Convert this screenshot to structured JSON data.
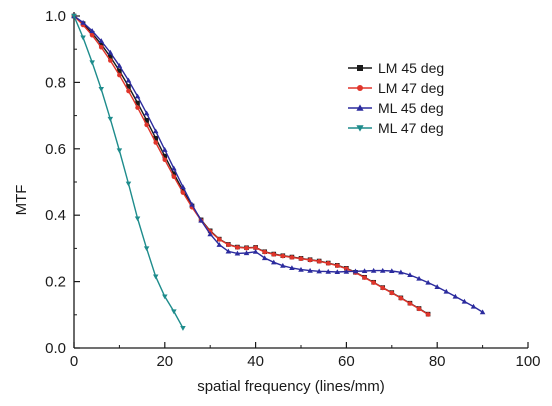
{
  "chart_data": {
    "type": "line",
    "xlabel": "spatial frequency (lines/mm)",
    "ylabel": "MTF",
    "xlim": [
      0,
      100
    ],
    "ylim": [
      0.0,
      1.0
    ],
    "x_ticks": [
      0,
      20,
      40,
      60,
      80,
      100
    ],
    "x_tick_labels": [
      "0",
      "20",
      "40",
      "60",
      "80",
      "100"
    ],
    "y_ticks": [
      0.0,
      0.2,
      0.4,
      0.6,
      0.8,
      1.0
    ],
    "y_tick_labels": [
      "0.0",
      "0.2",
      "0.4",
      "0.6",
      "0.8",
      "1.0"
    ],
    "grid": false,
    "legend_position": "top-right",
    "series": [
      {
        "name": "LM 45 deg",
        "color": "#1a1a1a",
        "marker": "square",
        "x": [
          0,
          2,
          4,
          6,
          8,
          10,
          12,
          14,
          16,
          18,
          20,
          22,
          24,
          26,
          28,
          30,
          32,
          34,
          36,
          38,
          40,
          42,
          44,
          46,
          48,
          50,
          52,
          54,
          56,
          58,
          60,
          62,
          64,
          66,
          68,
          70,
          72,
          74,
          76,
          78
        ],
        "y": [
          1.0,
          0.977,
          0.948,
          0.915,
          0.877,
          0.835,
          0.788,
          0.738,
          0.686,
          0.632,
          0.578,
          0.525,
          0.474,
          0.428,
          0.386,
          0.353,
          0.328,
          0.312,
          0.304,
          0.302,
          0.303,
          0.29,
          0.283,
          0.278,
          0.274,
          0.27,
          0.266,
          0.262,
          0.256,
          0.249,
          0.24,
          0.228,
          0.213,
          0.198,
          0.182,
          0.167,
          0.151,
          0.135,
          0.119,
          0.102
        ]
      },
      {
        "name": "LM 47 deg",
        "color": "#e0352b",
        "marker": "circle",
        "x": [
          0,
          2,
          4,
          6,
          8,
          10,
          12,
          14,
          16,
          18,
          20,
          22,
          24,
          26,
          28,
          30,
          32,
          34,
          36,
          38,
          40,
          42,
          44,
          46,
          48,
          50,
          52,
          54,
          56,
          58,
          60,
          62,
          64,
          66,
          68,
          70,
          72,
          74,
          76,
          78
        ],
        "y": [
          1.0,
          0.973,
          0.942,
          0.906,
          0.866,
          0.822,
          0.774,
          0.724,
          0.672,
          0.619,
          0.567,
          0.516,
          0.468,
          0.424,
          0.384,
          0.351,
          0.327,
          0.311,
          0.303,
          0.301,
          0.302,
          0.289,
          0.282,
          0.277,
          0.273,
          0.269,
          0.265,
          0.261,
          0.255,
          0.248,
          0.239,
          0.227,
          0.212,
          0.197,
          0.181,
          0.166,
          0.15,
          0.134,
          0.118,
          0.101
        ]
      },
      {
        "name": "ML 45 deg",
        "color": "#2b2b9e",
        "marker": "triangle-up",
        "x": [
          0,
          2,
          4,
          6,
          8,
          10,
          12,
          14,
          16,
          18,
          20,
          22,
          24,
          26,
          28,
          30,
          32,
          34,
          36,
          38,
          40,
          42,
          44,
          46,
          48,
          50,
          52,
          54,
          56,
          58,
          60,
          62,
          64,
          66,
          68,
          70,
          72,
          74,
          76,
          78,
          80,
          82,
          84,
          86,
          88,
          90
        ],
        "y": [
          1.0,
          0.98,
          0.955,
          0.925,
          0.89,
          0.85,
          0.806,
          0.758,
          0.707,
          0.653,
          0.597,
          0.541,
          0.485,
          0.432,
          0.384,
          0.343,
          0.311,
          0.291,
          0.285,
          0.286,
          0.29,
          0.271,
          0.258,
          0.248,
          0.241,
          0.236,
          0.233,
          0.231,
          0.23,
          0.229,
          0.23,
          0.231,
          0.232,
          0.233,
          0.233,
          0.232,
          0.228,
          0.22,
          0.209,
          0.197,
          0.184,
          0.17,
          0.155,
          0.14,
          0.125,
          0.108
        ]
      },
      {
        "name": "ML 47 deg",
        "color": "#1e8c8c",
        "marker": "triangle-down",
        "x": [
          0,
          2,
          4,
          6,
          8,
          10,
          12,
          14,
          16,
          18,
          20,
          22,
          24
        ],
        "y": [
          1.0,
          0.935,
          0.86,
          0.78,
          0.69,
          0.595,
          0.495,
          0.39,
          0.3,
          0.215,
          0.155,
          0.11,
          0.06
        ]
      }
    ]
  }
}
